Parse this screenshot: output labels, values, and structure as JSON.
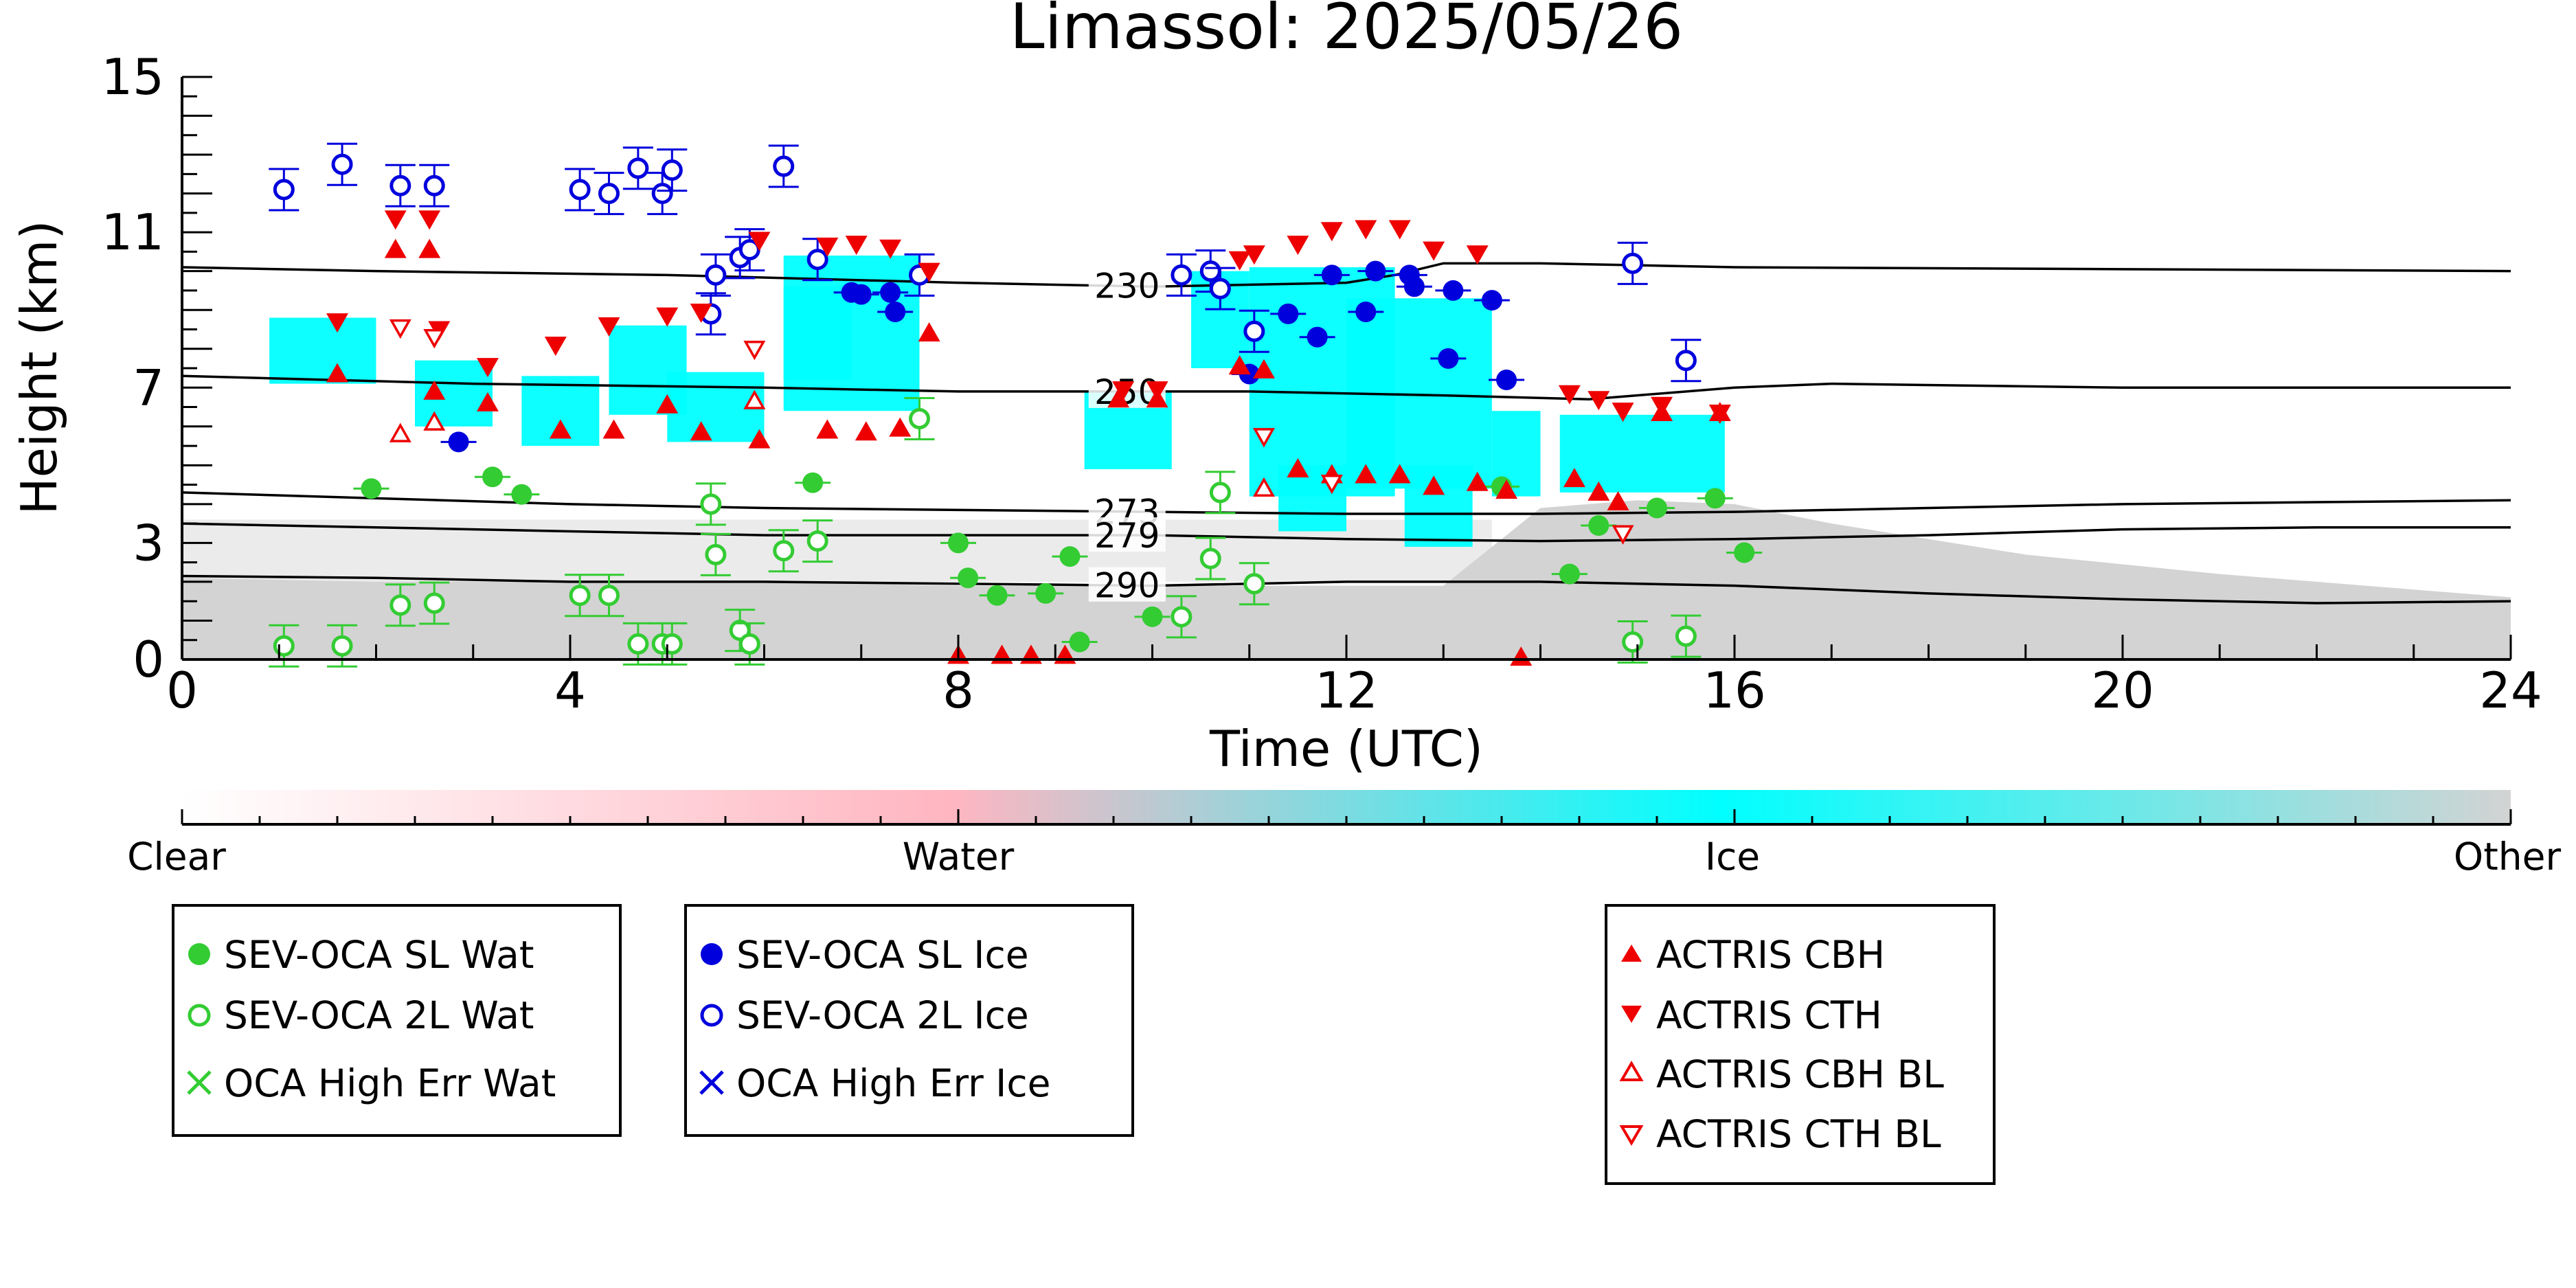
{
  "chart_data": {
    "type": "scatter",
    "title": "Limassol: 2025/05/26",
    "xlabel": "Time (UTC)",
    "ylabel": "Height (km)",
    "xlim": [
      0,
      24
    ],
    "ylim": [
      0,
      15
    ],
    "x_ticks": [
      "0",
      "4",
      "8",
      "12",
      "16",
      "20",
      "24"
    ],
    "y_ticks": [
      "0",
      "3",
      "7",
      "11",
      "15"
    ],
    "grid": false,
    "colorbar": {
      "labels": [
        "Clear",
        "Water",
        "Ice",
        "Other"
      ],
      "colors": {
        "clear": "#ffffff",
        "water": "#ffb6c1",
        "ice": "#00ffff",
        "other": "#d3d3d3"
      }
    },
    "colors": {
      "water": "#33cc33",
      "ice": "#0000dd",
      "actris": "#ee0000"
    },
    "contours": [
      {
        "label": "230",
        "points": [
          [
            0,
            10.1
          ],
          [
            2,
            10.0
          ],
          [
            5,
            9.9
          ],
          [
            8,
            9.7
          ],
          [
            10,
            9.6
          ],
          [
            12,
            9.7
          ],
          [
            12.5,
            9.9
          ],
          [
            13,
            10.2
          ],
          [
            14,
            10.2
          ],
          [
            16,
            10.1
          ],
          [
            20,
            10.05
          ],
          [
            24,
            10.0
          ]
        ]
      },
      {
        "label": "250",
        "points": [
          [
            0,
            7.3
          ],
          [
            3,
            7.1
          ],
          [
            6,
            7.0
          ],
          [
            8,
            6.9
          ],
          [
            9,
            6.9
          ],
          [
            11,
            6.9
          ],
          [
            13,
            6.8
          ],
          [
            14.5,
            6.7
          ],
          [
            16,
            7.0
          ],
          [
            17,
            7.1
          ],
          [
            20,
            7.0
          ],
          [
            24,
            7.0
          ]
        ]
      },
      {
        "label": "273",
        "points": [
          [
            0,
            4.3
          ],
          [
            2,
            4.15
          ],
          [
            4,
            4.0
          ],
          [
            6,
            3.9
          ],
          [
            8,
            3.85
          ],
          [
            10,
            3.8
          ],
          [
            12,
            3.75
          ],
          [
            14,
            3.75
          ],
          [
            16,
            3.8
          ],
          [
            18,
            3.9
          ],
          [
            20,
            4.0
          ],
          [
            22,
            4.05
          ],
          [
            24,
            4.1
          ]
        ]
      },
      {
        "label": "279",
        "points": [
          [
            0,
            3.5
          ],
          [
            2,
            3.4
          ],
          [
            4,
            3.3
          ],
          [
            6,
            3.2
          ],
          [
            8,
            3.2
          ],
          [
            10,
            3.2
          ],
          [
            12,
            3.1
          ],
          [
            14,
            3.05
          ],
          [
            16,
            3.1
          ],
          [
            18,
            3.2
          ],
          [
            20,
            3.35
          ],
          [
            22,
            3.4
          ],
          [
            24,
            3.4
          ]
        ]
      },
      {
        "label": "290",
        "points": [
          [
            0,
            2.15
          ],
          [
            2,
            2.1
          ],
          [
            4,
            2.0
          ],
          [
            6,
            2.0
          ],
          [
            8,
            1.95
          ],
          [
            10,
            1.9
          ],
          [
            12,
            2.0
          ],
          [
            14,
            2.0
          ],
          [
            16,
            1.9
          ],
          [
            18,
            1.7
          ],
          [
            20,
            1.55
          ],
          [
            22,
            1.45
          ],
          [
            24,
            1.5
          ]
        ]
      }
    ],
    "series": [
      {
        "name": "SEV-OCA SL Wat",
        "marker": "filled-circle",
        "color": "#33cc33",
        "points": [
          [
            1.95,
            4.4
          ],
          [
            3.2,
            4.7
          ],
          [
            3.5,
            4.25
          ],
          [
            6.5,
            4.55
          ],
          [
            8.0,
            3.0
          ],
          [
            8.1,
            2.1
          ],
          [
            8.4,
            1.65
          ],
          [
            8.9,
            1.7
          ],
          [
            9.15,
            2.65
          ],
          [
            9.25,
            0.45
          ],
          [
            10.0,
            1.1
          ],
          [
            13.6,
            4.45
          ],
          [
            14.3,
            2.2
          ],
          [
            14.6,
            3.45
          ],
          [
            15.2,
            3.9
          ],
          [
            15.8,
            4.15
          ],
          [
            16.1,
            2.75
          ]
        ]
      },
      {
        "name": "SEV-OCA 2L Wat",
        "marker": "open-circle",
        "color": "#33cc33",
        "points": [
          [
            1.05,
            0.35
          ],
          [
            1.65,
            0.35
          ],
          [
            2.25,
            1.4
          ],
          [
            2.6,
            1.45
          ],
          [
            4.1,
            1.65
          ],
          [
            4.4,
            1.65
          ],
          [
            4.7,
            0.4
          ],
          [
            4.95,
            0.4
          ],
          [
            5.05,
            0.4
          ],
          [
            5.45,
            4.0
          ],
          [
            5.5,
            2.7
          ],
          [
            5.75,
            0.75
          ],
          [
            5.85,
            0.4
          ],
          [
            6.2,
            2.8
          ],
          [
            6.55,
            3.05
          ],
          [
            7.6,
            6.2
          ],
          [
            10.3,
            1.1
          ],
          [
            10.6,
            2.6
          ],
          [
            10.7,
            4.3
          ],
          [
            11.05,
            1.95
          ],
          [
            14.95,
            0.45
          ],
          [
            15.5,
            0.6
          ]
        ]
      },
      {
        "name": "SEV-OCA SL Ice",
        "marker": "filled-circle",
        "color": "#0000dd",
        "points": [
          [
            2.85,
            5.6
          ],
          [
            6.9,
            9.45
          ],
          [
            7.0,
            9.4
          ],
          [
            7.3,
            9.45
          ],
          [
            7.35,
            8.95
          ],
          [
            11.0,
            7.35
          ],
          [
            11.4,
            8.9
          ],
          [
            11.7,
            8.3
          ],
          [
            11.85,
            9.9
          ],
          [
            12.2,
            8.95
          ],
          [
            12.3,
            10.0
          ],
          [
            12.65,
            9.9
          ],
          [
            12.7,
            9.6
          ],
          [
            13.05,
            7.75
          ],
          [
            13.1,
            9.5
          ],
          [
            13.5,
            9.25
          ],
          [
            13.65,
            7.2
          ]
        ]
      },
      {
        "name": "SEV-OCA 2L Ice",
        "marker": "open-circle",
        "color": "#0000dd",
        "points": [
          [
            1.05,
            12.1
          ],
          [
            1.65,
            12.75
          ],
          [
            2.25,
            12.2
          ],
          [
            2.6,
            12.2
          ],
          [
            4.1,
            12.1
          ],
          [
            4.4,
            12.0
          ],
          [
            4.7,
            12.65
          ],
          [
            4.95,
            12.0
          ],
          [
            5.05,
            12.6
          ],
          [
            5.45,
            8.9
          ],
          [
            5.5,
            9.9
          ],
          [
            5.75,
            10.35
          ],
          [
            5.85,
            10.55
          ],
          [
            6.2,
            12.7
          ],
          [
            6.55,
            10.3
          ],
          [
            7.6,
            9.9
          ],
          [
            10.3,
            9.9
          ],
          [
            10.6,
            10.0
          ],
          [
            10.7,
            9.55
          ],
          [
            11.05,
            8.45
          ],
          [
            14.95,
            10.2
          ],
          [
            15.5,
            7.7
          ]
        ]
      },
      {
        "name": "OCA High Err Wat",
        "marker": "x",
        "color": "#33cc33",
        "points": []
      },
      {
        "name": "OCA High Err Ice",
        "marker": "x",
        "color": "#0000dd",
        "points": []
      },
      {
        "name": "ACTRIS CBH",
        "marker": "triangle-up",
        "color": "#ee0000",
        "points": [
          [
            1.6,
            7.35
          ],
          [
            2.2,
            10.55
          ],
          [
            2.55,
            10.55
          ],
          [
            2.6,
            6.9
          ],
          [
            3.15,
            6.6
          ],
          [
            3.9,
            5.9
          ],
          [
            4.45,
            5.9
          ],
          [
            5.0,
            6.55
          ],
          [
            5.35,
            5.85
          ],
          [
            5.95,
            5.65
          ],
          [
            6.65,
            5.9
          ],
          [
            7.05,
            5.85
          ],
          [
            7.4,
            5.95
          ],
          [
            7.7,
            8.4
          ],
          [
            8.0,
            0.1
          ],
          [
            8.45,
            0.1
          ],
          [
            8.75,
            0.1
          ],
          [
            9.1,
            0.1
          ],
          [
            9.65,
            6.7
          ],
          [
            10.05,
            6.7
          ],
          [
            10.9,
            7.55
          ],
          [
            11.15,
            7.45
          ],
          [
            11.5,
            4.9
          ],
          [
            11.85,
            4.75
          ],
          [
            12.2,
            4.75
          ],
          [
            12.55,
            4.75
          ],
          [
            12.9,
            4.45
          ],
          [
            13.35,
            4.55
          ],
          [
            13.65,
            4.35
          ],
          [
            13.8,
            0.05
          ],
          [
            14.35,
            4.65
          ],
          [
            14.6,
            4.3
          ],
          [
            14.8,
            4.05
          ],
          [
            15.25,
            6.35
          ],
          [
            15.85,
            6.35
          ]
        ]
      },
      {
        "name": "ACTRIS CTH",
        "marker": "triangle-down",
        "color": "#ee0000",
        "points": [
          [
            1.6,
            8.7
          ],
          [
            2.2,
            11.35
          ],
          [
            2.55,
            11.35
          ],
          [
            2.65,
            8.5
          ],
          [
            3.15,
            7.55
          ],
          [
            3.85,
            8.1
          ],
          [
            4.4,
            8.6
          ],
          [
            5.0,
            8.85
          ],
          [
            5.35,
            8.95
          ],
          [
            5.95,
            10.8
          ],
          [
            6.65,
            10.65
          ],
          [
            6.95,
            10.7
          ],
          [
            7.3,
            10.6
          ],
          [
            7.7,
            10.0
          ],
          [
            9.7,
            6.95
          ],
          [
            10.05,
            6.95
          ],
          [
            10.9,
            10.3
          ],
          [
            11.05,
            10.45
          ],
          [
            11.5,
            10.7
          ],
          [
            11.85,
            11.05
          ],
          [
            12.2,
            11.1
          ],
          [
            12.55,
            11.1
          ],
          [
            12.9,
            10.55
          ],
          [
            13.35,
            10.45
          ],
          [
            14.3,
            6.85
          ],
          [
            14.6,
            6.7
          ],
          [
            14.85,
            6.4
          ],
          [
            15.25,
            6.55
          ],
          [
            15.85,
            6.35
          ]
        ]
      },
      {
        "name": "ACTRIS CBH BL",
        "marker": "open-triangle-up",
        "color": "#ee0000",
        "points": [
          [
            2.25,
            5.8
          ],
          [
            2.6,
            6.1
          ],
          [
            5.9,
            6.65
          ],
          [
            11.15,
            4.4
          ]
        ]
      },
      {
        "name": "ACTRIS CTH BL",
        "marker": "open-triangle-down",
        "color": "#ee0000",
        "points": [
          [
            2.25,
            8.55
          ],
          [
            2.6,
            8.3
          ],
          [
            5.9,
            8.0
          ],
          [
            11.15,
            5.75
          ],
          [
            11.85,
            4.55
          ],
          [
            14.85,
            3.25
          ]
        ]
      }
    ]
  }
}
